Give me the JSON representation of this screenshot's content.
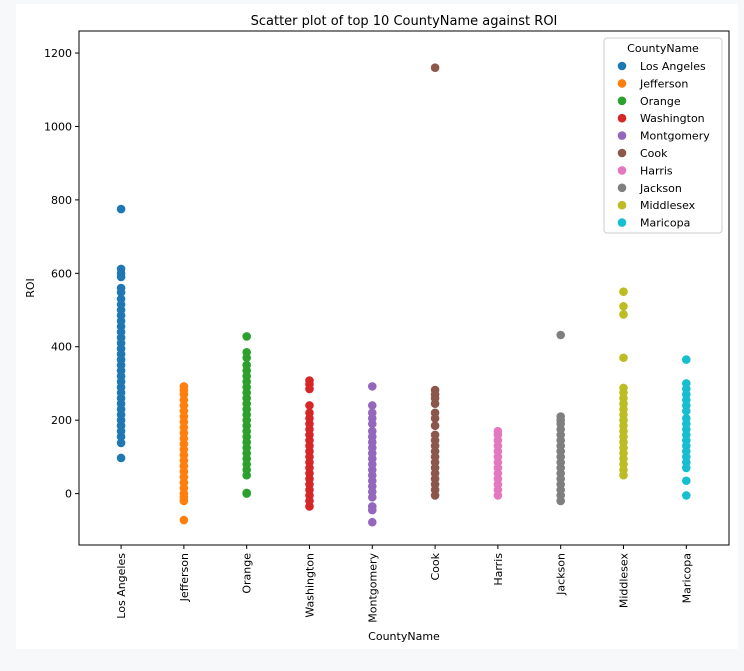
{
  "chart_data": {
    "type": "scatter",
    "title": "Scatter plot of top 10 CountyName against ROI",
    "xlabel": "CountyName",
    "ylabel": "ROI",
    "ylim": [
      -140,
      1260
    ],
    "yticks": [
      0,
      200,
      400,
      600,
      800,
      1000,
      1200
    ],
    "categories": [
      "Los Angeles",
      "Jefferson",
      "Orange",
      "Washington",
      "Montgomery",
      "Cook",
      "Harris",
      "Jackson",
      "Middlesex",
      "Maricopa"
    ],
    "legend": {
      "title": "CountyName",
      "placement": "top-right"
    },
    "grid": false,
    "series": [
      {
        "name": "Los Angeles",
        "color": "#1f77b4",
        "points": [
          {
            "y": 97
          },
          {
            "y": 775
          },
          {
            "y": 612
          },
          {
            "y": 600
          },
          {
            "y": 590
          },
          {
            "y": 560
          },
          {
            "y": 548
          },
          {
            "y": 530
          },
          {
            "y": 515
          },
          {
            "y": 500
          },
          {
            "y": 485
          },
          {
            "y": 470
          },
          {
            "y": 455
          },
          {
            "y": 440
          },
          {
            "y": 425
          },
          {
            "y": 410
          },
          {
            "y": 395
          },
          {
            "y": 380
          },
          {
            "y": 365
          },
          {
            "y": 350
          },
          {
            "y": 335
          },
          {
            "y": 320
          },
          {
            "y": 305
          },
          {
            "y": 290
          },
          {
            "y": 275
          },
          {
            "y": 260
          },
          {
            "y": 245
          },
          {
            "y": 230
          },
          {
            "y": 215
          },
          {
            "y": 200
          },
          {
            "y": 185
          },
          {
            "y": 170
          },
          {
            "y": 155
          },
          {
            "y": 138
          }
        ]
      },
      {
        "name": "Jefferson",
        "color": "#ff7f0e",
        "points": [
          {
            "y": -72
          },
          {
            "y": -20
          },
          {
            "y": -10
          },
          {
            "y": 0
          },
          {
            "y": 15
          },
          {
            "y": 30
          },
          {
            "y": 45
          },
          {
            "y": 60
          },
          {
            "y": 75
          },
          {
            "y": 90
          },
          {
            "y": 105
          },
          {
            "y": 120
          },
          {
            "y": 135
          },
          {
            "y": 150
          },
          {
            "y": 165
          },
          {
            "y": 180
          },
          {
            "y": 195
          },
          {
            "y": 210
          },
          {
            "y": 225
          },
          {
            "y": 240
          },
          {
            "y": 255
          },
          {
            "y": 270
          },
          {
            "y": 282
          },
          {
            "y": 292
          }
        ]
      },
      {
        "name": "Orange",
        "color": "#2ca02c",
        "points": [
          {
            "y": 0
          },
          {
            "y": 2
          },
          {
            "y": 50
          },
          {
            "y": 65
          },
          {
            "y": 80
          },
          {
            "y": 95
          },
          {
            "y": 110
          },
          {
            "y": 125
          },
          {
            "y": 140
          },
          {
            "y": 155
          },
          {
            "y": 170
          },
          {
            "y": 185
          },
          {
            "y": 200
          },
          {
            "y": 215
          },
          {
            "y": 230
          },
          {
            "y": 245
          },
          {
            "y": 260
          },
          {
            "y": 275
          },
          {
            "y": 290
          },
          {
            "y": 305
          },
          {
            "y": 320
          },
          {
            "y": 335
          },
          {
            "y": 350
          },
          {
            "y": 370
          },
          {
            "y": 385
          },
          {
            "y": 428
          }
        ]
      },
      {
        "name": "Washington",
        "color": "#d62728",
        "points": [
          {
            "y": -35
          },
          {
            "y": -20
          },
          {
            "y": -5
          },
          {
            "y": 10
          },
          {
            "y": 25
          },
          {
            "y": 40
          },
          {
            "y": 55
          },
          {
            "y": 70
          },
          {
            "y": 85
          },
          {
            "y": 100
          },
          {
            "y": 115
          },
          {
            "y": 130
          },
          {
            "y": 145
          },
          {
            "y": 160
          },
          {
            "y": 175
          },
          {
            "y": 190
          },
          {
            "y": 205
          },
          {
            "y": 220
          },
          {
            "y": 240
          },
          {
            "y": 285
          },
          {
            "y": 298
          },
          {
            "y": 308
          }
        ]
      },
      {
        "name": "Montgomery",
        "color": "#9467bd",
        "points": [
          {
            "y": -78
          },
          {
            "y": -45
          },
          {
            "y": -35
          },
          {
            "y": -10
          },
          {
            "y": 5
          },
          {
            "y": 20
          },
          {
            "y": 35
          },
          {
            "y": 50
          },
          {
            "y": 65
          },
          {
            "y": 80
          },
          {
            "y": 95
          },
          {
            "y": 110
          },
          {
            "y": 125
          },
          {
            "y": 140
          },
          {
            "y": 155
          },
          {
            "y": 170
          },
          {
            "y": 190
          },
          {
            "y": 205
          },
          {
            "y": 220
          },
          {
            "y": 240
          },
          {
            "y": 292
          }
        ]
      },
      {
        "name": "Cook",
        "color": "#8c564b",
        "points": [
          {
            "y": -5
          },
          {
            "y": 10
          },
          {
            "y": 25
          },
          {
            "y": 40
          },
          {
            "y": 55
          },
          {
            "y": 70
          },
          {
            "y": 85
          },
          {
            "y": 100
          },
          {
            "y": 115
          },
          {
            "y": 130
          },
          {
            "y": 145
          },
          {
            "y": 160
          },
          {
            "y": 185
          },
          {
            "y": 205
          },
          {
            "y": 220
          },
          {
            "y": 245
          },
          {
            "y": 260
          },
          {
            "y": 270
          },
          {
            "y": 282
          },
          {
            "y": 1160
          }
        ]
      },
      {
        "name": "Harris",
        "color": "#e377c2",
        "points": [
          {
            "y": -5
          },
          {
            "y": 10
          },
          {
            "y": 25
          },
          {
            "y": 40
          },
          {
            "y": 55
          },
          {
            "y": 70
          },
          {
            "y": 85
          },
          {
            "y": 100
          },
          {
            "y": 115
          },
          {
            "y": 130
          },
          {
            "y": 145
          },
          {
            "y": 160
          },
          {
            "y": 170
          }
        ]
      },
      {
        "name": "Jackson",
        "color": "#7f7f7f",
        "points": [
          {
            "y": -20
          },
          {
            "y": -5
          },
          {
            "y": 10
          },
          {
            "y": 25
          },
          {
            "y": 40
          },
          {
            "y": 55
          },
          {
            "y": 70
          },
          {
            "y": 85
          },
          {
            "y": 100
          },
          {
            "y": 115
          },
          {
            "y": 130
          },
          {
            "y": 145
          },
          {
            "y": 160
          },
          {
            "y": 175
          },
          {
            "y": 190
          },
          {
            "y": 200
          },
          {
            "y": 210
          },
          {
            "y": 432
          }
        ]
      },
      {
        "name": "Middlesex",
        "color": "#bcbd22",
        "points": [
          {
            "y": 50
          },
          {
            "y": 65
          },
          {
            "y": 80
          },
          {
            "y": 95
          },
          {
            "y": 110
          },
          {
            "y": 125
          },
          {
            "y": 140
          },
          {
            "y": 155
          },
          {
            "y": 170
          },
          {
            "y": 185
          },
          {
            "y": 200
          },
          {
            "y": 215
          },
          {
            "y": 230
          },
          {
            "y": 245
          },
          {
            "y": 260
          },
          {
            "y": 275
          },
          {
            "y": 288
          },
          {
            "y": 370
          },
          {
            "y": 488
          },
          {
            "y": 510
          },
          {
            "y": 550
          }
        ]
      },
      {
        "name": "Maricopa",
        "color": "#17becf",
        "points": [
          {
            "y": -5
          },
          {
            "y": 35
          },
          {
            "y": 70
          },
          {
            "y": 85
          },
          {
            "y": 100
          },
          {
            "y": 115
          },
          {
            "y": 130
          },
          {
            "y": 145
          },
          {
            "y": 160
          },
          {
            "y": 175
          },
          {
            "y": 190
          },
          {
            "y": 205
          },
          {
            "y": 225
          },
          {
            "y": 240
          },
          {
            "y": 255
          },
          {
            "y": 270
          },
          {
            "y": 285
          },
          {
            "y": 300
          },
          {
            "y": 365
          }
        ]
      }
    ]
  }
}
